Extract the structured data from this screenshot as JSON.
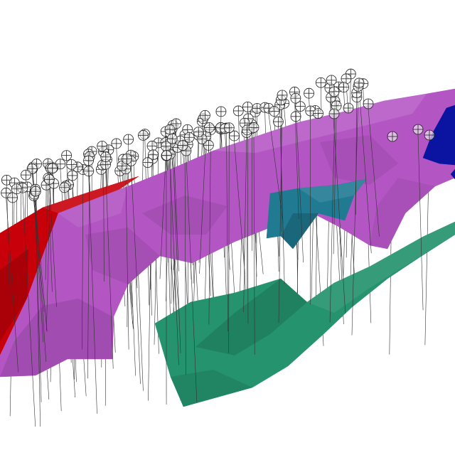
{
  "viewer": {
    "background": "#ffffff"
  },
  "drillholes": {
    "collar_symbol": "circle-crosshair-icon",
    "line_color": "#333333"
  },
  "surfaces": [
    {
      "name": "red-orebody",
      "color": "#c8000a"
    },
    {
      "name": "magenta-orebody",
      "color": "#b455c4"
    },
    {
      "name": "teal-orebody",
      "color": "#1f7a92"
    },
    {
      "name": "green-orebody",
      "color": "#25936e"
    },
    {
      "name": "blue-orebody",
      "color": "#0b14a0"
    }
  ]
}
